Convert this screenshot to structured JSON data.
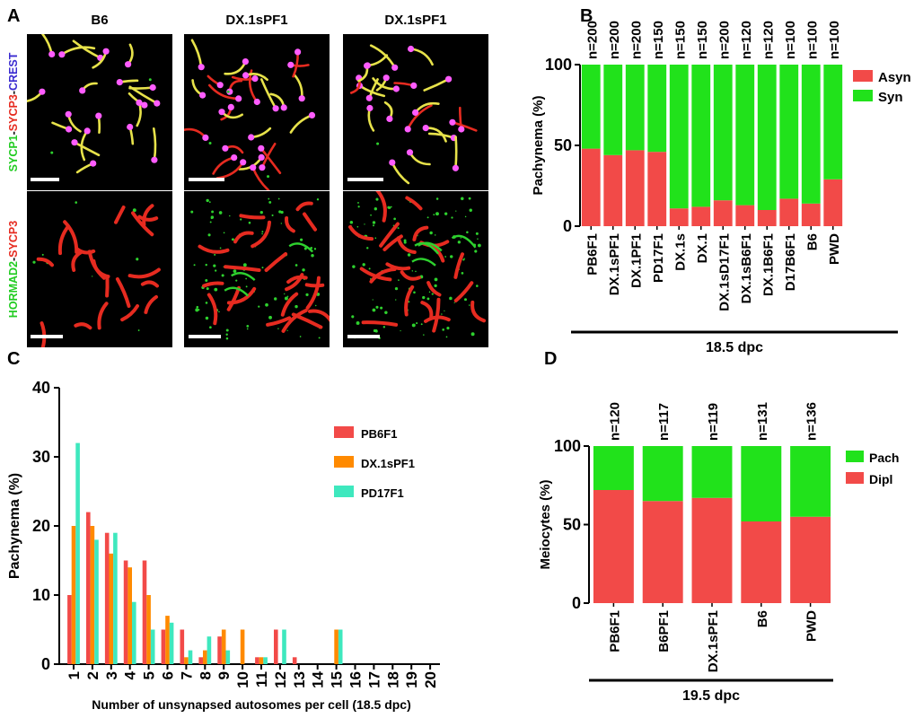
{
  "colors": {
    "red": "#f24a48",
    "green": "#21e21b",
    "orange": "#ff8a00",
    "teal": "#3ee8be",
    "micro_bg": "#000000",
    "sc_yellow": "#e7e24a",
    "sc_red": "#e62b20",
    "centromere": "#ff5cff",
    "hormad_green": "#2ed12e"
  },
  "panel_labels": {
    "a": "A",
    "b": "B",
    "c": "C",
    "d": "D"
  },
  "panel_a": {
    "columns": [
      "B6",
      "DX.1sPF1",
      "DX.1sPF1"
    ],
    "row_labels": [
      {
        "parts": [
          {
            "text": "SYCP1",
            "color": "#22cc22"
          },
          {
            "text": "-",
            "color": "#000000"
          },
          {
            "text": "SYCP3",
            "color": "#e62b20"
          },
          {
            "text": "-",
            "color": "#000000"
          },
          {
            "text": "CREST",
            "color": "#3a2bd0"
          }
        ]
      },
      {
        "parts": [
          {
            "text": "HORMAD2",
            "color": "#22cc22"
          },
          {
            "text": "-",
            "color": "#000000"
          },
          {
            "text": "SYCP3",
            "color": "#e62b20"
          }
        ]
      }
    ],
    "tiles": [
      {
        "kind": "sc",
        "chromosomes": 20,
        "style": "yellow",
        "debris": 2
      },
      {
        "kind": "sc",
        "chromosomes": 26,
        "style": "mixed",
        "debris": 3
      },
      {
        "kind": "sc",
        "chromosomes": 22,
        "style": "mixed2",
        "debris": 1
      },
      {
        "kind": "hormad",
        "chromosomes": 20,
        "green_axes": 0,
        "speckles": 8
      },
      {
        "kind": "hormad",
        "chromosomes": 22,
        "green_axes": 3,
        "speckles": 90
      },
      {
        "kind": "hormad",
        "chromosomes": 22,
        "green_axes": 4,
        "speckles": 110
      }
    ]
  },
  "chart_data": [
    {
      "panel": "B",
      "type": "bar",
      "stacked": true,
      "ylabel": "Pachynema (%)",
      "xlabel": "18.5 dpc",
      "ylim": [
        0,
        100
      ],
      "yticks": [
        0,
        50,
        100
      ],
      "categories": [
        "PB6F1",
        "DX.1sPF1",
        "DX.1PF1",
        "PD17F1",
        "DX.1s",
        "DX.1",
        "DX.1sD17F1",
        "DX.1sB6F1",
        "DX.1B6F1",
        "D17B6F1",
        "B6",
        "PWD"
      ],
      "n_labels": [
        "n=200",
        "n=200",
        "n=200",
        "n=150",
        "n=150",
        "n=150",
        "n=200",
        "n=120",
        "n=120",
        "n=100",
        "n=100",
        "n=100"
      ],
      "series": [
        {
          "name": "Asyn",
          "color": "#f24a48",
          "values": [
            48,
            44,
            47,
            46,
            11,
            12,
            16,
            13,
            10,
            17,
            14,
            29
          ]
        },
        {
          "name": "Syn",
          "color": "#21e21b",
          "values": [
            52,
            56,
            53,
            54,
            89,
            88,
            84,
            87,
            90,
            83,
            86,
            71
          ]
        }
      ],
      "legend": "top-right"
    },
    {
      "panel": "C",
      "type": "bar",
      "ylabel": "Pachynema (%)",
      "xlabel": "Number of unsynapsed autosomes per cell (18.5 dpc)",
      "ylim": [
        0,
        40
      ],
      "yticks": [
        0,
        10,
        20,
        30,
        40
      ],
      "categories": [
        "1",
        "2",
        "3",
        "4",
        "5",
        "6",
        "7",
        "8",
        "9",
        "10",
        "11",
        "12",
        "13",
        "14",
        "15",
        "16",
        "17",
        "18",
        "19",
        "20"
      ],
      "series": [
        {
          "name": "PB6F1",
          "color": "#f24a48",
          "values": [
            10,
            22,
            19,
            15,
            15,
            5,
            5,
            1,
            4,
            0,
            1,
            5,
            1,
            0,
            0,
            0,
            0,
            0,
            0,
            0
          ]
        },
        {
          "name": "DX.1sPF1",
          "color": "#ff8a00",
          "values": [
            20,
            20,
            16,
            14,
            10,
            7,
            1,
            2,
            5,
            5,
            1,
            0,
            0,
            0,
            5,
            0,
            0,
            0,
            0,
            0
          ]
        },
        {
          "name": "PD17F1",
          "color": "#3ee8be",
          "values": [
            32,
            18,
            19,
            9,
            5,
            6,
            2,
            4,
            2,
            0,
            1,
            5,
            0,
            0,
            5,
            0,
            0,
            0,
            0,
            0
          ]
        }
      ],
      "legend": "top-right"
    },
    {
      "panel": "D",
      "type": "bar",
      "stacked": true,
      "ylabel": "Meiocytes (%)",
      "xlabel": "19.5 dpc",
      "ylim": [
        0,
        100
      ],
      "yticks": [
        0,
        50,
        100
      ],
      "categories": [
        "PB6F1",
        "B6PF1",
        "DX.1sPF1",
        "B6",
        "PWD"
      ],
      "n_labels": [
        "n=120",
        "n=117",
        "n=119",
        "n=131",
        "n=136"
      ],
      "series": [
        {
          "name": "Dipl",
          "color": "#f24a48",
          "values": [
            72,
            65,
            67,
            52,
            55
          ]
        },
        {
          "name": "Pach",
          "color": "#21e21b",
          "values": [
            28,
            35,
            33,
            48,
            45
          ]
        }
      ],
      "legend": "top-right",
      "legend_order": [
        "Pach",
        "Dipl"
      ]
    }
  ]
}
